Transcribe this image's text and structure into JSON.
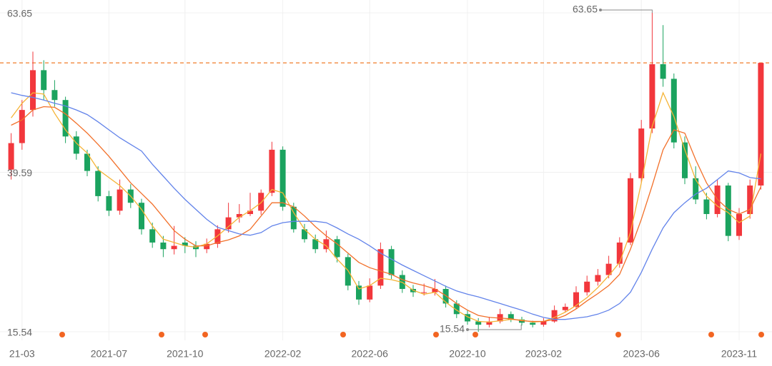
{
  "chart_data": {
    "type": "candlestick",
    "ylim": [
      15.54,
      63.65
    ],
    "yticks": [
      15.54,
      39.59,
      63.65
    ],
    "grid": true,
    "up_color": "#f2373c",
    "down_color": "#1ba35f",
    "categories": [
      null,
      "21-03",
      null,
      null,
      null,
      null,
      null,
      null,
      null,
      "2021-07",
      null,
      null,
      null,
      null,
      null,
      null,
      "2021-10",
      null,
      null,
      null,
      null,
      null,
      null,
      null,
      null,
      "2022-02",
      null,
      null,
      null,
      null,
      null,
      null,
      null,
      "2022-06",
      null,
      null,
      null,
      null,
      null,
      null,
      null,
      null,
      "2022-10",
      null,
      null,
      null,
      null,
      null,
      null,
      "2023-02",
      null,
      null,
      null,
      null,
      null,
      null,
      null,
      null,
      "2023-06",
      null,
      null,
      null,
      null,
      null,
      null,
      null,
      null,
      "2023-11",
      null,
      null
    ],
    "candles": [
      [
        40.0,
        45.5,
        38.5,
        44.0
      ],
      [
        44.0,
        50.5,
        43.0,
        49.0
      ],
      [
        49.0,
        57.8,
        48.0,
        55.0
      ],
      [
        55.0,
        56.5,
        50.5,
        52.0
      ],
      [
        52.0,
        53.5,
        49.5,
        50.5
      ],
      [
        50.5,
        51.0,
        44.0,
        45.0
      ],
      [
        45.0,
        45.8,
        41.5,
        42.4
      ],
      [
        42.4,
        43.0,
        39.0,
        39.8
      ],
      [
        39.8,
        40.5,
        35.2,
        36.0
      ],
      [
        36.0,
        36.8,
        33.0,
        33.8
      ],
      [
        33.8,
        38.5,
        33.2,
        37.0
      ],
      [
        37.0,
        37.8,
        34.2,
        35.0
      ],
      [
        35.0,
        35.6,
        30.2,
        31.0
      ],
      [
        31.0,
        32.0,
        28.2,
        29.0
      ],
      [
        29.0,
        30.0,
        26.8,
        28.0
      ],
      [
        28.0,
        31.5,
        27.2,
        28.5
      ],
      [
        29.0,
        29.8,
        27.4,
        28.5
      ],
      [
        28.5,
        29.2,
        26.8,
        28.0
      ],
      [
        28.0,
        29.6,
        27.4,
        28.8
      ],
      [
        28.8,
        31.6,
        28.2,
        31.0
      ],
      [
        31.0,
        35.0,
        30.5,
        32.8
      ],
      [
        32.8,
        34.8,
        32.0,
        33.3
      ],
      [
        33.3,
        36.5,
        33.0,
        33.8
      ],
      [
        33.8,
        37.0,
        33.2,
        36.5
      ],
      [
        36.5,
        44.2,
        36.0,
        43.0
      ],
      [
        43.0,
        43.5,
        33.8,
        34.4
      ],
      [
        34.4,
        35.0,
        30.5,
        31.0
      ],
      [
        31.0,
        31.8,
        29.0,
        29.5
      ],
      [
        29.5,
        30.2,
        27.4,
        28.0
      ],
      [
        28.0,
        30.8,
        27.5,
        29.5
      ],
      [
        29.5,
        30.0,
        26.0,
        26.8
      ],
      [
        26.8,
        27.3,
        21.8,
        22.5
      ],
      [
        22.5,
        23.2,
        19.6,
        20.4
      ],
      [
        20.4,
        23.6,
        20.0,
        22.5
      ],
      [
        22.5,
        29.0,
        22.0,
        28.0
      ],
      [
        28.0,
        28.5,
        23.5,
        24.1
      ],
      [
        24.1,
        24.8,
        21.4,
        22.0
      ],
      [
        22.0,
        22.6,
        20.8,
        21.5
      ],
      [
        21.5,
        22.8,
        21.0,
        21.5
      ],
      [
        21.5,
        23.5,
        21.0,
        22.0
      ],
      [
        22.0,
        22.5,
        19.2,
        19.8
      ],
      [
        19.8,
        20.3,
        17.6,
        18.2
      ],
      [
        18.2,
        18.8,
        16.6,
        17.1
      ],
      [
        17.1,
        17.6,
        15.54,
        16.6
      ],
      [
        16.6,
        17.8,
        16.2,
        17.1
      ],
      [
        17.1,
        19.0,
        16.8,
        18.2
      ],
      [
        18.2,
        18.6,
        17.0,
        17.4
      ],
      [
        17.4,
        17.8,
        16.5,
        16.9
      ],
      [
        16.9,
        17.2,
        16.2,
        16.6
      ],
      [
        16.6,
        17.6,
        16.3,
        17.1
      ],
      [
        17.1,
        19.5,
        16.9,
        18.8
      ],
      [
        18.8,
        19.8,
        18.5,
        19.3
      ],
      [
        19.3,
        22.4,
        19.0,
        21.5
      ],
      [
        21.5,
        24.0,
        21.0,
        23.1
      ],
      [
        23.1,
        25.0,
        22.5,
        24.1
      ],
      [
        24.1,
        27.0,
        23.6,
        25.8
      ],
      [
        25.8,
        29.8,
        25.2,
        29.0
      ],
      [
        29.0,
        39.5,
        28.6,
        38.7
      ],
      [
        38.7,
        47.5,
        38.0,
        46.2
      ],
      [
        46.2,
        63.65,
        45.5,
        55.9
      ],
      [
        55.9,
        61.8,
        52.5,
        53.7
      ],
      [
        53.7,
        54.5,
        43.2,
        44.1
      ],
      [
        44.1,
        45.0,
        37.8,
        38.7
      ],
      [
        38.7,
        40.5,
        34.8,
        35.5
      ],
      [
        35.5,
        36.5,
        32.5,
        33.3
      ],
      [
        33.3,
        38.5,
        32.8,
        37.6
      ],
      [
        37.6,
        38.0,
        29.2,
        30.0
      ],
      [
        30.0,
        34.2,
        29.4,
        33.3
      ],
      [
        33.3,
        38.5,
        32.6,
        37.6
      ],
      [
        37.6,
        56.1,
        37.0,
        56.1
      ]
    ],
    "series": [
      {
        "color": "#f5b335",
        "values": [
          47.8,
          50.0,
          51.6,
          51.4,
          48.5,
          46.0,
          44.0,
          42.5,
          40.0,
          38.8,
          37.6,
          36.0,
          34.0,
          31.5,
          29.5,
          29.0,
          28.5,
          28.3,
          28.8,
          30.0,
          31.4,
          32.8,
          33.8,
          35.0,
          37.0,
          36.5,
          33.5,
          31.0,
          29.5,
          28.5,
          26.5,
          24.8,
          22.0,
          22.5,
          23.6,
          23.4,
          23.0,
          21.8,
          21.2,
          21.5,
          20.0,
          18.8,
          17.8,
          17.1,
          17.0,
          17.2,
          17.4,
          17.3,
          17.0,
          17.1,
          17.7,
          18.5,
          19.5,
          20.7,
          22.2,
          24.0,
          26.0,
          30.5,
          38.0,
          46.5,
          51.6,
          48.0,
          43.0,
          38.5,
          36.0,
          34.5,
          33.5,
          32.0,
          33.0,
          42.4
        ]
      },
      {
        "color": "#f2702a",
        "values": [
          46.7,
          47.5,
          49.0,
          49.5,
          49.4,
          48.4,
          47.0,
          45.5,
          43.8,
          42.0,
          40.0,
          38.0,
          36.4,
          34.8,
          32.8,
          30.8,
          29.5,
          28.5,
          28.5,
          29.0,
          29.4,
          30.0,
          31.0,
          33.0,
          35.0,
          35.0,
          34.4,
          33.0,
          31.4,
          30.0,
          28.8,
          27.4,
          26.0,
          25.2,
          24.7,
          24.2,
          23.4,
          22.9,
          22.5,
          22.0,
          21.0,
          19.8,
          18.8,
          18.0,
          17.7,
          17.6,
          17.5,
          17.2,
          17.1,
          17.1,
          17.4,
          18.0,
          19.0,
          20.2,
          21.3,
          22.5,
          24.2,
          28.0,
          32.5,
          37.6,
          43.0,
          46.0,
          45.5,
          41.5,
          38.0,
          35.5,
          34.0,
          33.3,
          34.0,
          37.4
        ]
      },
      {
        "color": "#6283ea",
        "values": [
          51.6,
          51.2,
          50.9,
          50.5,
          50.0,
          49.6,
          49.0,
          48.3,
          47.2,
          46.0,
          44.8,
          43.8,
          42.8,
          40.8,
          39.0,
          37.2,
          35.5,
          34.0,
          32.5,
          31.3,
          30.8,
          30.3,
          30.1,
          30.5,
          31.5,
          32.0,
          32.2,
          32.2,
          32.2,
          32.0,
          31.2,
          30.3,
          29.5,
          28.5,
          27.4,
          26.5,
          25.6,
          24.8,
          24.0,
          23.2,
          22.4,
          21.7,
          21.2,
          20.8,
          20.3,
          19.8,
          19.3,
          18.8,
          18.2,
          17.7,
          17.4,
          17.4,
          17.6,
          17.8,
          18.2,
          18.8,
          19.8,
          21.5,
          24.5,
          28.0,
          31.2,
          33.5,
          35.0,
          36.3,
          37.2,
          38.5,
          39.8,
          39.5,
          38.8,
          38.6
        ]
      }
    ]
  }
}
